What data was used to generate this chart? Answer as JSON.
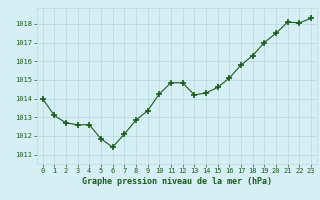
{
  "x": [
    0,
    1,
    2,
    3,
    4,
    5,
    6,
    7,
    8,
    9,
    10,
    11,
    12,
    13,
    14,
    15,
    16,
    17,
    18,
    19,
    20,
    21,
    22,
    23
  ],
  "y": [
    1014.0,
    1013.1,
    1012.7,
    1012.6,
    1012.6,
    1011.85,
    1011.4,
    1012.1,
    1012.85,
    1013.35,
    1014.25,
    1014.85,
    1014.85,
    1014.2,
    1014.3,
    1014.6,
    1015.1,
    1015.8,
    1016.3,
    1017.0,
    1017.5,
    1018.1,
    1018.05,
    1018.3
  ],
  "line_color": "#1a5c1a",
  "marker_color": "#1a5c1a",
  "bg_color": "#d6eff5",
  "grid_color": "#b8dce4",
  "xlabel": "Graphe pression niveau de la mer (hPa)",
  "xlabel_color": "#1a5c1a",
  "tick_color": "#1a5c1a",
  "ylim_min": 1010.5,
  "ylim_max": 1018.85,
  "yticks": [
    1011,
    1012,
    1013,
    1014,
    1015,
    1016,
    1017,
    1018
  ],
  "xticks": [
    0,
    1,
    2,
    3,
    4,
    5,
    6,
    7,
    8,
    9,
    10,
    11,
    12,
    13,
    14,
    15,
    16,
    17,
    18,
    19,
    20,
    21,
    22,
    23
  ]
}
